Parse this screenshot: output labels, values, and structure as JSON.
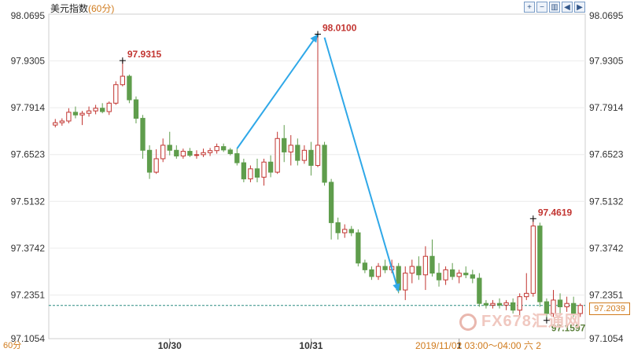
{
  "header": {
    "instrument": "美元指数",
    "interval_label": "(60分)"
  },
  "toolbar": {
    "icons": [
      "zoom-in-icon",
      "zoom-out-icon",
      "chart-type-icon",
      "step-back-icon",
      "step-forward-icon"
    ],
    "glyphs": [
      "+",
      "−",
      "▥",
      "◀",
      "▶"
    ]
  },
  "footer": {
    "interval": "60分",
    "info": "2019/11/02 03:00～04:00 六 2"
  },
  "watermark": {
    "text": "FX678汇通网"
  },
  "last_price": "97.2039",
  "colors": {
    "up": "#c23531",
    "down": "#5f9d4c",
    "arrow": "#2fa8e8",
    "label": "#c23531",
    "grid": "#ececec",
    "last_line": "#2a8a80"
  },
  "chart_data": {
    "type": "candlestick",
    "ylim": [
      97.1054,
      98.0695
    ],
    "yticks": [
      "98.0695",
      "97.9305",
      "97.7914",
      "97.6523",
      "97.5132",
      "97.3742",
      "97.2351",
      "97.1054"
    ],
    "xticks": [
      {
        "label": "10/30",
        "index": 17
      },
      {
        "label": "10/31",
        "index": 38
      },
      {
        "label": "1",
        "index": 60
      }
    ],
    "annotations": [
      {
        "label": "97.9315",
        "index": 10,
        "value": 97.9315
      },
      {
        "label": "98.0100",
        "index": 39,
        "value": 98.01
      },
      {
        "label": "97.4619",
        "index": 71,
        "value": 97.4619
      },
      {
        "label": "97.1597",
        "index": 73,
        "value": 97.1597
      }
    ],
    "arrows": [
      {
        "from": [
          27,
          97.67
        ],
        "to": [
          39,
          98.01
        ]
      },
      {
        "from": [
          40,
          98.0
        ],
        "to": [
          51,
          97.245
        ]
      }
    ],
    "last_price": 97.2039,
    "candles": [
      [
        97.74,
        97.758,
        97.733,
        97.747
      ],
      [
        97.747,
        97.76,
        97.738,
        97.752
      ],
      [
        97.752,
        97.79,
        97.745,
        97.778
      ],
      [
        97.778,
        97.795,
        97.76,
        97.77
      ],
      [
        97.77,
        97.782,
        97.74,
        97.775
      ],
      [
        97.775,
        97.795,
        97.765,
        97.782
      ],
      [
        97.782,
        97.8,
        97.772,
        97.79
      ],
      [
        97.79,
        97.805,
        97.775,
        97.78
      ],
      [
        97.78,
        97.81,
        97.77,
        97.805
      ],
      [
        97.805,
        97.87,
        97.8,
        97.86
      ],
      [
        97.86,
        97.931,
        97.855,
        97.885
      ],
      [
        97.885,
        97.89,
        97.805,
        97.815
      ],
      [
        97.815,
        97.825,
        97.745,
        97.76
      ],
      [
        97.76,
        97.77,
        97.64,
        97.665
      ],
      [
        97.665,
        97.68,
        97.58,
        97.6
      ],
      [
        97.6,
        97.668,
        97.595,
        97.64
      ],
      [
        97.64,
        97.7,
        97.63,
        97.68
      ],
      [
        97.68,
        97.72,
        97.65,
        97.665
      ],
      [
        97.665,
        97.68,
        97.64,
        97.648
      ],
      [
        97.648,
        97.67,
        97.64,
        97.662
      ],
      [
        97.662,
        97.672,
        97.645,
        97.65
      ],
      [
        97.65,
        97.665,
        97.64,
        97.652
      ],
      [
        97.652,
        97.67,
        97.645,
        97.658
      ],
      [
        97.658,
        97.672,
        97.648,
        97.664
      ],
      [
        97.664,
        97.685,
        97.655,
        97.676
      ],
      [
        97.676,
        97.685,
        97.66,
        97.666
      ],
      [
        97.666,
        97.672,
        97.65,
        97.655
      ],
      [
        97.655,
        97.67,
        97.62,
        97.628
      ],
      [
        97.628,
        97.64,
        97.57,
        97.58
      ],
      [
        97.58,
        97.62,
        97.57,
        97.61
      ],
      [
        97.61,
        97.64,
        97.57,
        97.585
      ],
      [
        97.585,
        97.64,
        97.56,
        97.63
      ],
      [
        97.63,
        97.65,
        97.585,
        97.6
      ],
      [
        97.6,
        97.72,
        97.595,
        97.7
      ],
      [
        97.7,
        97.74,
        97.63,
        97.66
      ],
      [
        97.66,
        97.71,
        97.62,
        97.68
      ],
      [
        97.68,
        97.7,
        97.62,
        97.635
      ],
      [
        97.635,
        97.68,
        97.625,
        97.665
      ],
      [
        97.665,
        97.69,
        97.59,
        97.62
      ],
      [
        97.62,
        98.01,
        97.615,
        97.68
      ],
      [
        97.68,
        97.69,
        97.56,
        97.57
      ],
      [
        97.57,
        97.58,
        97.4,
        97.45
      ],
      [
        97.45,
        97.465,
        97.4,
        97.42
      ],
      [
        97.42,
        97.445,
        97.405,
        97.43
      ],
      [
        97.43,
        97.44,
        97.41,
        97.42
      ],
      [
        97.42,
        97.43,
        97.32,
        97.33
      ],
      [
        97.33,
        97.34,
        97.3,
        97.31
      ],
      [
        97.31,
        97.32,
        97.28,
        97.29
      ],
      [
        97.29,
        97.33,
        97.28,
        97.32
      ],
      [
        97.32,
        97.34,
        97.3,
        97.31
      ],
      [
        97.31,
        97.34,
        97.3,
        97.32
      ],
      [
        97.32,
        97.33,
        97.24,
        97.25
      ],
      [
        97.25,
        97.32,
        97.22,
        97.3
      ],
      [
        97.3,
        97.34,
        97.27,
        97.32
      ],
      [
        97.32,
        97.35,
        97.28,
        97.295
      ],
      [
        97.295,
        97.38,
        97.25,
        97.35
      ],
      [
        97.35,
        97.4,
        97.29,
        97.3
      ],
      [
        97.3,
        97.33,
        97.26,
        97.28
      ],
      [
        97.28,
        97.32,
        97.265,
        97.31
      ],
      [
        97.31,
        97.33,
        97.28,
        97.29
      ],
      [
        97.29,
        97.31,
        97.27,
        97.3
      ],
      [
        97.3,
        97.32,
        97.285,
        97.295
      ],
      [
        97.295,
        97.31,
        97.27,
        97.285
      ],
      [
        97.285,
        97.3,
        97.2,
        97.21
      ],
      [
        97.21,
        97.22,
        97.195,
        97.205
      ],
      [
        97.205,
        97.22,
        97.195,
        97.21
      ],
      [
        97.21,
        97.225,
        97.195,
        97.205
      ],
      [
        97.205,
        97.22,
        97.19,
        97.212
      ],
      [
        97.212,
        97.225,
        97.18,
        97.19
      ],
      [
        97.19,
        97.24,
        97.17,
        97.23
      ],
      [
        97.23,
        97.3,
        97.22,
        97.24
      ],
      [
        97.24,
        97.462,
        97.23,
        97.44
      ],
      [
        97.44,
        97.45,
        97.2,
        97.215
      ],
      [
        97.215,
        97.225,
        97.16,
        97.18
      ],
      [
        97.18,
        97.25,
        97.17,
        97.22
      ],
      [
        97.22,
        97.24,
        97.18,
        97.2
      ],
      [
        97.2,
        97.23,
        97.185,
        97.21
      ],
      [
        97.21,
        97.23,
        97.17,
        97.18
      ],
      [
        97.18,
        97.21,
        97.17,
        97.204
      ]
    ]
  }
}
